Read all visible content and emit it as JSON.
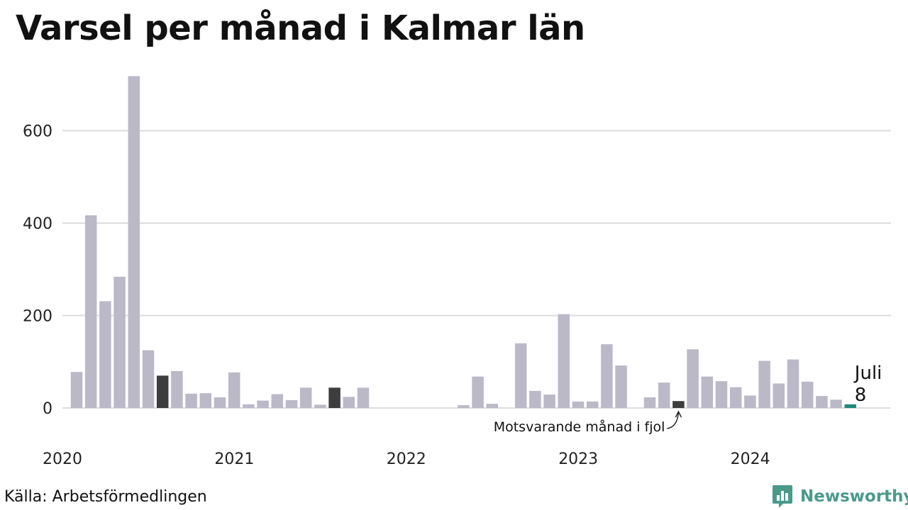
{
  "title": "Varsel per månad i Kalmar län",
  "source": "Källa: Arbetsförmedlingen",
  "brand": {
    "name": "Newsworthy",
    "icon": "newsworthy-logo-icon",
    "color": "#4a9a8c"
  },
  "colors": {
    "bar": "#bbb8c8",
    "highlight_previous_year": "#3d3d3d",
    "highlight_latest": "#1f8a7c",
    "grid": "#dddddd"
  },
  "chart_data": {
    "type": "bar",
    "title": "Varsel per månad i Kalmar län",
    "xlabel": "",
    "ylabel": "",
    "ylim": [
      0,
      720
    ],
    "y_ticks": [
      0,
      200,
      400,
      600
    ],
    "x_tick_labels": [
      "2020",
      "2021",
      "2022",
      "2023",
      "2024"
    ],
    "grid": true,
    "categories": [
      "2020-01",
      "2020-02",
      "2020-03",
      "2020-04",
      "2020-05",
      "2020-06",
      "2020-07",
      "2020-08",
      "2020-09",
      "2020-10",
      "2020-11",
      "2020-12",
      "2021-01",
      "2021-02",
      "2021-03",
      "2021-04",
      "2021-05",
      "2021-06",
      "2021-07",
      "2021-08",
      "2021-09",
      "2021-10",
      "2021-11",
      "2021-12",
      "2022-01",
      "2022-02",
      "2022-03",
      "2022-04",
      "2022-05",
      "2022-06",
      "2022-07",
      "2022-08",
      "2022-09",
      "2022-10",
      "2022-11",
      "2022-12",
      "2023-01",
      "2023-02",
      "2023-03",
      "2023-04",
      "2023-05",
      "2023-06",
      "2023-07",
      "2023-08",
      "2023-09",
      "2023-10",
      "2023-11",
      "2023-12",
      "2024-01",
      "2024-02",
      "2024-03",
      "2024-04",
      "2024-05",
      "2024-06",
      "2024-07"
    ],
    "values": [
      78,
      417,
      231,
      284,
      718,
      125,
      70,
      80,
      31,
      32,
      23,
      77,
      8,
      16,
      30,
      17,
      44,
      7,
      44,
      24,
      44,
      0,
      0,
      0,
      0,
      0,
      0,
      6,
      68,
      9,
      0,
      140,
      37,
      29,
      203,
      14,
      14,
      138,
      92,
      0,
      23,
      55,
      15,
      127,
      68,
      58,
      45,
      27,
      102,
      53,
      105,
      57,
      26,
      18,
      8
    ],
    "highlight": [
      {
        "category": "2020-07",
        "role": "previous_year"
      },
      {
        "category": "2021-07",
        "role": "previous_year"
      },
      {
        "category": "2023-07",
        "role": "previous_year"
      },
      {
        "category": "2024-07",
        "role": "latest"
      }
    ],
    "annotations": {
      "latest_month": "Juli",
      "latest_value": "8",
      "previous_year_note": "Motsvarande månad i fjol"
    }
  }
}
